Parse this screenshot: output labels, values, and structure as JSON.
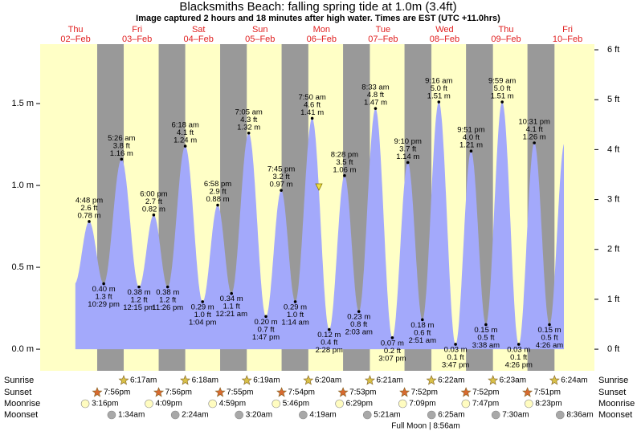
{
  "chart_data": {
    "type": "tide",
    "title": "Blacksmiths Beach: falling  spring tide at 1.0m (3.4ft)",
    "subtitle": "Image captured 2 hours and 18 minutes after high water. Times are EST (UTC +11.0hrs)",
    "ylim": [
      -0.132,
      1.863
    ],
    "yticks": [
      {
        "value": 0,
        "label": "0.0 m"
      },
      {
        "value": 0.5,
        "label": "0.5 m"
      },
      {
        "value": 1,
        "label": "1.0 m"
      },
      {
        "value": 1.5,
        "label": "1.5 m"
      }
    ],
    "y2lim": [
      -0.433,
      6.113
    ],
    "y2ticks": [
      {
        "value": 0,
        "label": "0 ft"
      },
      {
        "value": 1,
        "label": "1 ft"
      },
      {
        "value": 2,
        "label": "2 ft"
      },
      {
        "value": 3,
        "label": "3 ft"
      },
      {
        "value": 4,
        "label": "4 ft"
      },
      {
        "value": 5,
        "label": "5 ft"
      },
      {
        "value": 6,
        "label": "6 ft"
      }
    ],
    "colors": {
      "day": "#ffffc6",
      "night": "#999999",
      "tide": "#a3a9fb",
      "date": "#e02020",
      "sunrise": "#d8c048",
      "sunset": "#d86a30",
      "moonrise": "#fffcc0",
      "moonset": "#a8a8a8"
    },
    "row_labels": [
      "Sunrise",
      "Sunset",
      "Moonrise",
      "Moonset"
    ],
    "annotation": "Full Moon | 8:56am",
    "days": [
      {
        "weekday": "Thu",
        "date": "02–Feb",
        "sunset": "7:56pm",
        "moonrise": "3:16pm",
        "tides": {
          "times": [
            "4:48 pm",
            "10:29 pm"
          ],
          "values": [
            0.78,
            0.4
          ],
          "value_labels": [
            "0.78 m",
            "0.40 m"
          ],
          "ft_labels": [
            "2.6 ft",
            "1.3 ft"
          ]
        }
      },
      {
        "weekday": "Fri",
        "date": "03–Feb",
        "sunrise": "6:17am",
        "sunset": "7:56pm",
        "moonrise": "4:09pm",
        "moonset": "1:34am",
        "tides": {
          "times": [
            "5:26 am",
            "12:15 pm",
            "6:00 pm",
            "11:26 pm"
          ],
          "values": [
            1.16,
            0.38,
            0.82,
            0.38
          ],
          "value_labels": [
            "1.16 m",
            "0.38 m",
            "0.82 m",
            "0.38 m"
          ],
          "ft_labels": [
            "3.8 ft",
            "1.2 ft",
            "2.7 ft",
            "1.2 ft"
          ]
        }
      },
      {
        "weekday": "Sat",
        "date": "04–Feb",
        "sunrise": "6:18am",
        "sunset": "7:55pm",
        "moonrise": "4:59pm",
        "moonset": "2:24am",
        "tides": {
          "times": [
            "6:18 am",
            "1:04 pm",
            "6:58 pm"
          ],
          "values": [
            1.24,
            0.29,
            0.88
          ],
          "value_labels": [
            "1.24 m",
            "0.29 m",
            "0.88 m"
          ],
          "ft_labels": [
            "4.1 ft",
            "1.0 ft",
            "2.9 ft"
          ]
        }
      },
      {
        "weekday": "Sun",
        "date": "05–Feb",
        "sunrise": "6:19am",
        "sunset": "7:54pm",
        "moonrise": "5:46pm",
        "moonset": "3:20am",
        "tides": {
          "times": [
            "12:21 am",
            "7:05 am",
            "1:47 pm",
            "7:45 pm"
          ],
          "values": [
            0.34,
            1.32,
            0.2,
            0.97
          ],
          "value_labels": [
            "0.34 m",
            "1.32 m",
            "0.20 m",
            "0.97 m"
          ],
          "ft_labels": [
            "1.1 ft",
            "4.3 ft",
            "0.7 ft",
            "3.2 ft"
          ]
        }
      },
      {
        "weekday": "Mon",
        "date": "06–Feb",
        "sunrise": "6:20am",
        "sunset": "7:53pm",
        "moonrise": "6:29pm",
        "moonset": "4:19am",
        "tides": {
          "times": [
            "1:14 am",
            "7:50 am",
            "2:28 pm",
            "8:28 pm"
          ],
          "values": [
            0.29,
            1.41,
            0.12,
            1.06
          ],
          "value_labels": [
            "0.29 m",
            "1.41 m",
            "0.12 m",
            "1.06 m"
          ],
          "ft_labels": [
            "1.0 ft",
            "4.6 ft",
            "0.4 ft",
            "3.5 ft"
          ]
        }
      },
      {
        "weekday": "Tue",
        "date": "07–Feb",
        "sunrise": "6:21am",
        "sunset": "7:52pm",
        "moonrise": "7:09pm",
        "moonset": "5:21am",
        "tides": {
          "times": [
            "2:03 am",
            "8:33 am",
            "3:07 pm",
            "9:10 pm"
          ],
          "values": [
            0.23,
            1.47,
            0.07,
            1.14
          ],
          "value_labels": [
            "0.23 m",
            "1.47 m",
            "0.07 m",
            "1.14 m"
          ],
          "ft_labels": [
            "0.8 ft",
            "4.8 ft",
            "0.2 ft",
            "3.7 ft"
          ]
        }
      },
      {
        "weekday": "Wed",
        "date": "08–Feb",
        "sunrise": "6:22am",
        "sunset": "7:52pm",
        "moonrise": "7:47pm",
        "moonset": "6:25am",
        "tides": {
          "times": [
            "2:51 am",
            "9:16 am",
            "3:47 pm",
            "9:51 pm"
          ],
          "values": [
            0.18,
            1.51,
            0.03,
            1.21
          ],
          "value_labels": [
            "0.18 m",
            "1.51 m",
            "0.03 m",
            "1.21 m"
          ],
          "ft_labels": [
            "0.6 ft",
            "5.0 ft",
            "0.1 ft",
            "4.0 ft"
          ]
        }
      },
      {
        "weekday": "Thu",
        "date": "09–Feb",
        "sunrise": "6:23am",
        "sunset": "7:51pm",
        "moonrise": "8:23pm",
        "moonset": "7:30am",
        "tides": {
          "times": [
            "3:38 am",
            "9:59 am",
            "4:26 pm",
            "10:31 pm"
          ],
          "values": [
            0.15,
            1.51,
            0.03,
            1.26
          ],
          "value_labels": [
            "0.15 m",
            "1.51 m",
            "0.03 m",
            "1.26 m"
          ],
          "ft_labels": [
            "0.5 ft",
            "5.0 ft",
            "0.1 ft",
            "4.1 ft"
          ]
        }
      },
      {
        "weekday": "Fri",
        "date": "10–Feb",
        "sunrise": "6:24am",
        "moonset": "8:36am",
        "tides": {
          "times": [
            "4:26 am"
          ],
          "values": [
            0.15
          ],
          "value_labels": [
            "0.15 m"
          ],
          "ft_labels": [
            "0.5 ft"
          ]
        }
      }
    ]
  }
}
